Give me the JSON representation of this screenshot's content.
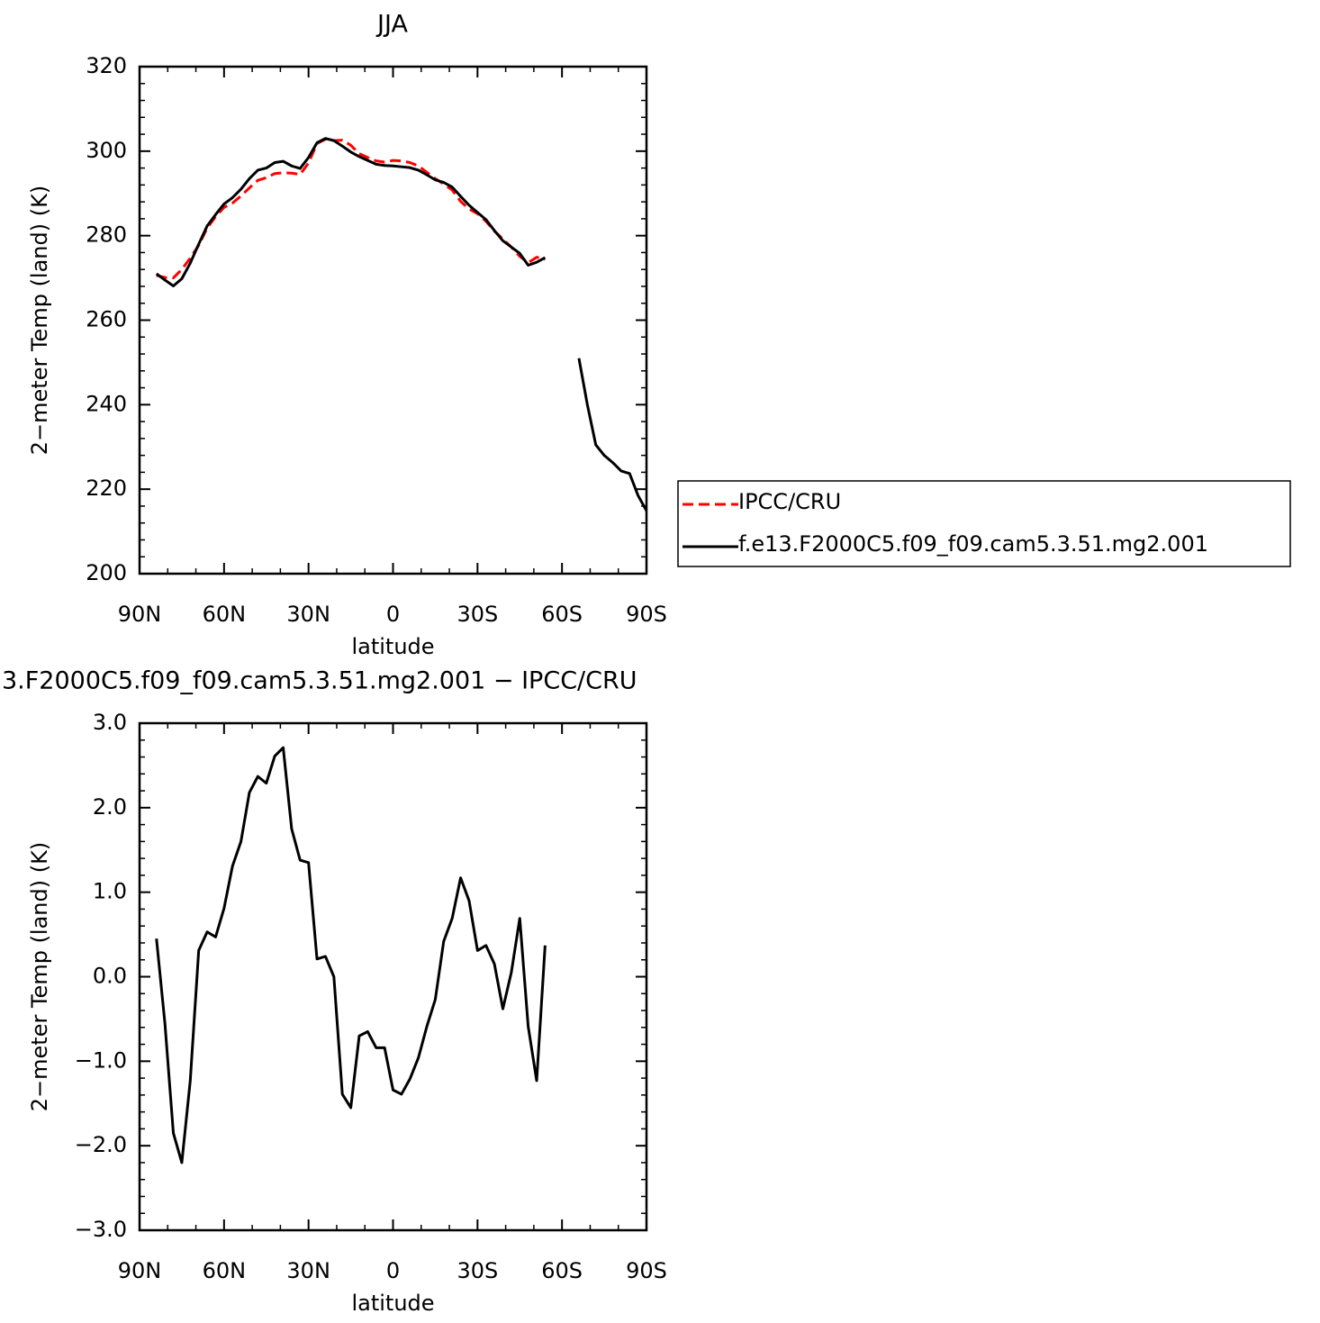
{
  "chart_data": [
    {
      "type": "line",
      "title": "JJA",
      "x_label": "latitude",
      "y_label": "2−meter Temp (land) (K)",
      "x": [
        84,
        81,
        78,
        75,
        72,
        69,
        66,
        63,
        60,
        57,
        54,
        51,
        48,
        45,
        42,
        39,
        36,
        33,
        30,
        27,
        24,
        21,
        18,
        15,
        12,
        9,
        6,
        3,
        0,
        -3,
        -6,
        -9,
        -12,
        -15,
        -18,
        -21,
        -24,
        -27,
        -30,
        -33,
        -36,
        -39,
        -42,
        -45,
        -48,
        -51,
        -54,
        -57,
        -60,
        -63,
        -66,
        -69,
        -72,
        -75,
        -78,
        -81,
        -84,
        -87,
        -90
      ],
      "series": [
        {
          "name": "IPCC/CRU",
          "color": "#ff0000",
          "dashed": true,
          "values": [
            270.6,
            270.1,
            270.0,
            272.0,
            274.7,
            277.7,
            281.8,
            284.5,
            286.7,
            287.7,
            289.4,
            291.3,
            293.1,
            293.7,
            294.7,
            294.9,
            294.8,
            294.5,
            297.2,
            301.8,
            302.8,
            302.5,
            302.6,
            301.4,
            299.4,
            298.5,
            297.7,
            297.4,
            297.8,
            297.7,
            297.3,
            296.5,
            295.0,
            293.5,
            292.2,
            290.8,
            288.1,
            286.3,
            285.2,
            283.4,
            281.1,
            279.2,
            277.3,
            275.1,
            273.6,
            274.9,
            274.4,
            null,
            null,
            null,
            null,
            null,
            null,
            null,
            null,
            null,
            null,
            null,
            null
          ]
        },
        {
          "name": "f.e13.F2000C5.f09_f09.cam5.3.51.mg2.001",
          "color": "#000000",
          "dashed": false,
          "values": [
            271.0,
            269.5,
            268.1,
            269.8,
            273.5,
            278.0,
            282.3,
            285.0,
            287.5,
            289.0,
            291.0,
            293.5,
            295.5,
            296.0,
            297.3,
            297.6,
            296.5,
            295.9,
            298.5,
            302.0,
            303.0,
            302.5,
            301.2,
            299.8,
            298.7,
            297.8,
            296.9,
            296.6,
            296.5,
            296.3,
            296.1,
            295.5,
            294.4,
            293.2,
            292.6,
            291.5,
            289.3,
            287.2,
            285.5,
            283.8,
            281.2,
            278.8,
            277.3,
            275.8,
            273.0,
            273.7,
            274.8,
            null,
            null,
            null,
            251.0,
            240.0,
            230.5,
            228.0,
            226.3,
            224.3,
            223.7,
            218.5,
            214.9
          ]
        }
      ],
      "xlim": [
        90,
        -90
      ],
      "xticks": [
        {
          "value": 90,
          "label": "90N"
        },
        {
          "value": 60,
          "label": "60N"
        },
        {
          "value": 30,
          "label": "30N"
        },
        0,
        {
          "value": -30,
          "label": "30S"
        },
        {
          "value": -60,
          "label": "60S"
        },
        {
          "value": -90,
          "label": "90S"
        }
      ],
      "ylim": [
        200,
        320
      ],
      "yticks": [
        200,
        220,
        240,
        260,
        280,
        300,
        320
      ],
      "legend": "right"
    },
    {
      "type": "line",
      "title": "3.F2000C5.f09_f09.cam5.3.51.mg2.001 − IPCC/CRU",
      "x_label": "latitude",
      "y_label": "2−meter Temp (land) (K)",
      "x": [
        84,
        81,
        78,
        75,
        72,
        69,
        66,
        63,
        60,
        57,
        54,
        51,
        48,
        45,
        42,
        39,
        36,
        33,
        30,
        27,
        24,
        21,
        18,
        15,
        12,
        9,
        6,
        3,
        0,
        -3,
        -6,
        -9,
        -12,
        -15,
        -18,
        -21,
        -24,
        -27,
        -30,
        -33,
        -36,
        -39,
        -42,
        -45,
        -48,
        -51,
        -54,
        -57,
        -60,
        -63,
        -66,
        -69,
        -72,
        -75,
        -78,
        -81,
        -84,
        -87,
        -90
      ],
      "color": "#000000",
      "values": [
        0.45,
        -0.55,
        -1.85,
        -2.2,
        -1.23,
        0.31,
        0.53,
        0.47,
        0.81,
        1.31,
        1.6,
        2.18,
        2.37,
        2.29,
        2.61,
        2.71,
        1.75,
        1.38,
        1.35,
        0.21,
        0.24,
        0.0,
        -1.39,
        -1.55,
        -0.7,
        -0.65,
        -0.84,
        -0.84,
        -1.34,
        -1.39,
        -1.21,
        -0.96,
        -0.59,
        -0.27,
        0.42,
        0.69,
        1.17,
        0.9,
        0.31,
        0.37,
        0.15,
        -0.38,
        0.05,
        0.69,
        -0.59,
        -1.23,
        0.37,
        null,
        null,
        null,
        null,
        null,
        null,
        null,
        null,
        null,
        null,
        null,
        null
      ],
      "xlim": [
        90,
        -90
      ],
      "xticks": [
        {
          "value": 90,
          "label": "90N"
        },
        {
          "value": 60,
          "label": "60N"
        },
        {
          "value": 30,
          "label": "30N"
        },
        0,
        {
          "value": -30,
          "label": "30S"
        },
        {
          "value": -60,
          "label": "60S"
        },
        {
          "value": -90,
          "label": "90S"
        }
      ],
      "ylim": [
        -3,
        3
      ],
      "yticks": [
        {
          "value": -3,
          "label": "−3.0"
        },
        {
          "value": -2,
          "label": "−2.0"
        },
        {
          "value": -1,
          "label": "−1.0"
        },
        {
          "value": 0,
          "label": "0.0"
        },
        {
          "value": 1,
          "label": "1.0"
        },
        {
          "value": 2,
          "label": "2.0"
        },
        {
          "value": 3,
          "label": "3.0"
        }
      ]
    }
  ]
}
